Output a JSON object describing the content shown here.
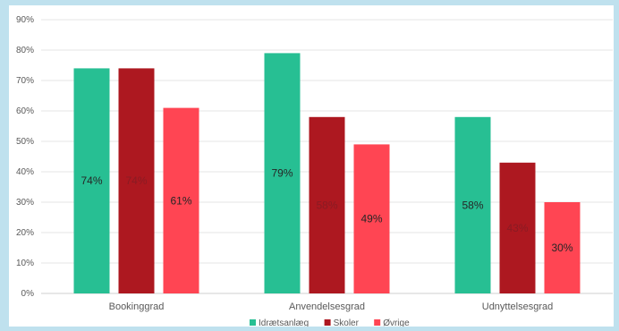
{
  "chart_data": {
    "type": "bar",
    "categories": [
      "Bookinggrad",
      "Anvendelsesgrad",
      "Udnyttelsesgrad"
    ],
    "series": [
      {
        "name": "Idrætsanlæg",
        "values": [
          74,
          79,
          58
        ],
        "color": "#27bf93"
      },
      {
        "name": "Skoler",
        "values": [
          74,
          58,
          43
        ],
        "color": "#ad1820"
      },
      {
        "name": "Øvrige",
        "values": [
          61,
          49,
          30
        ],
        "color": "#ff4553"
      }
    ],
    "data_labels": [
      [
        "74%",
        "79%",
        "58%"
      ],
      [
        "74%",
        "58%",
        "43%"
      ],
      [
        "61%",
        "49%",
        "30%"
      ]
    ],
    "y_ticks": [
      "0%",
      "10%",
      "20%",
      "30%",
      "40%",
      "50%",
      "60%",
      "70%",
      "80%",
      "90%"
    ],
    "ylim": [
      0,
      90
    ],
    "grid": true,
    "legend": "bottom",
    "title": "",
    "xlabel": "",
    "ylabel": ""
  }
}
